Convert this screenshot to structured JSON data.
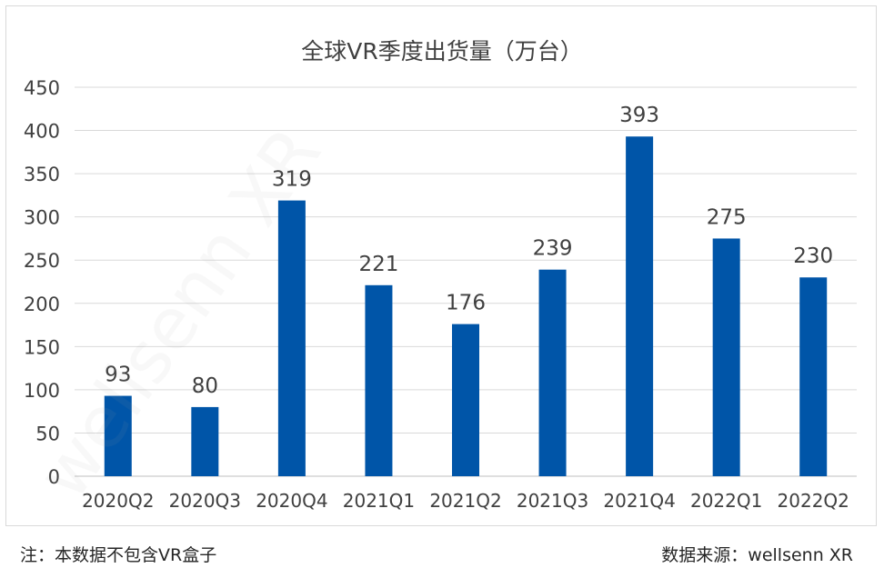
{
  "chart_data": {
    "type": "bar",
    "title": "全球VR季度出货量（万台）",
    "categories": [
      "2020Q2",
      "2020Q3",
      "2020Q4",
      "2021Q1",
      "2021Q2",
      "2021Q3",
      "2021Q4",
      "2022Q1",
      "2022Q2"
    ],
    "values": [
      93,
      80,
      319,
      221,
      176,
      239,
      393,
      275,
      230
    ],
    "ylim": [
      0,
      450
    ],
    "yticks": [
      0,
      50,
      100,
      150,
      200,
      250,
      300,
      350,
      400,
      450
    ],
    "grid": true,
    "bar_color": "#0055A8",
    "data_labels": true
  },
  "footer": {
    "note": "注：本数据不包含VR盒子",
    "source": "数据来源：wellsenn XR"
  },
  "watermark": {
    "text": "wellsenn XR"
  }
}
